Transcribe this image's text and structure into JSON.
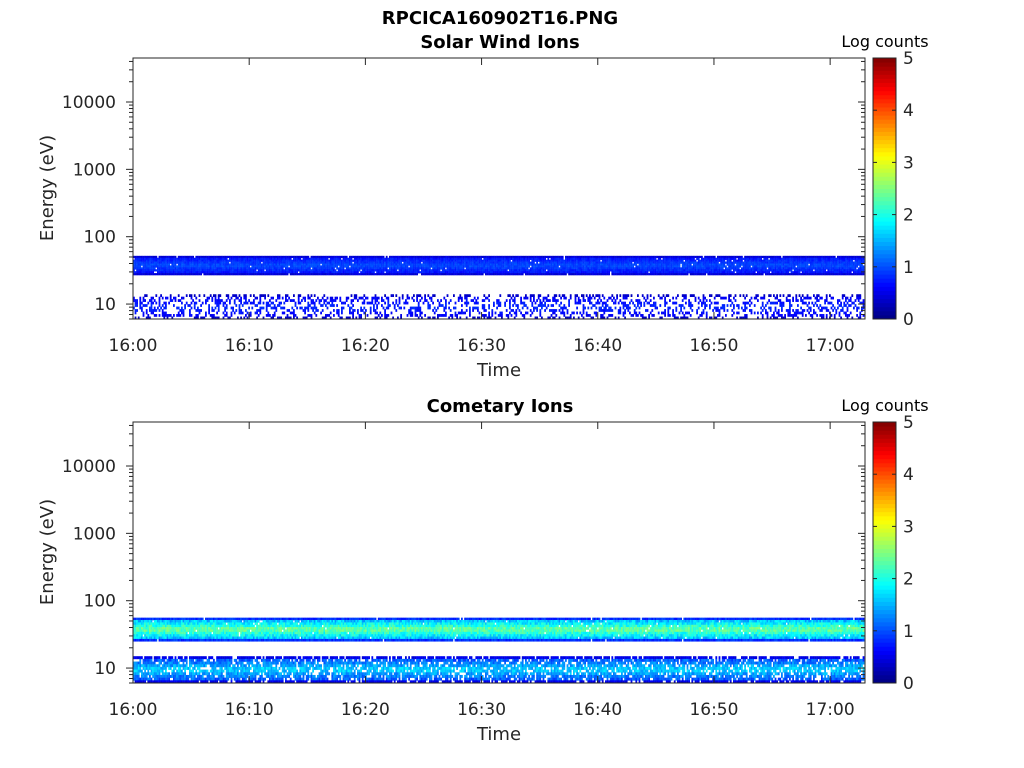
{
  "figure_title": "RPCICA160902T16.PNG",
  "colors": {
    "colormap": [
      "#00008f",
      "#0000ff",
      "#00ffff",
      "#ffff00",
      "#ff0000",
      "#800000"
    ],
    "axis": "#262626"
  },
  "chart_data": [
    {
      "type": "heatmap",
      "title": "Solar Wind Ions",
      "xlabel": "Time",
      "ylabel": "Energy (eV)",
      "x_ticks": [
        "16:00",
        "16:10",
        "16:20",
        "16:30",
        "16:40",
        "16:50",
        "17:00"
      ],
      "x_range_minutes": [
        0,
        63
      ],
      "y_scale": "log",
      "y_ticks": [
        "10",
        "100",
        "1000",
        "10000"
      ],
      "y_range": [
        6,
        45000
      ],
      "colorbar": {
        "label": "Log counts",
        "ticks": [
          "0",
          "1",
          "2",
          "3",
          "4",
          "5"
        ],
        "range": [
          0,
          5
        ]
      },
      "bands": [
        {
          "energy_min": 27,
          "energy_max": 52,
          "log_counts_min": 0.5,
          "log_counts_max": 1.1,
          "fill": 0.97
        },
        {
          "energy_min": 6,
          "energy_max": 14,
          "log_counts_min": 0.4,
          "log_counts_max": 0.9,
          "fill": 0.35
        }
      ],
      "grid": false
    },
    {
      "type": "heatmap",
      "title": "Cometary Ions",
      "xlabel": "Time",
      "ylabel": "Energy (eV)",
      "x_ticks": [
        "16:00",
        "16:10",
        "16:20",
        "16:30",
        "16:40",
        "16:50",
        "17:00"
      ],
      "x_range_minutes": [
        0,
        63
      ],
      "y_scale": "log",
      "y_ticks": [
        "10",
        "100",
        "1000",
        "10000"
      ],
      "y_range": [
        6,
        45000
      ],
      "colorbar": {
        "label": "Log counts",
        "ticks": [
          "0",
          "1",
          "2",
          "3",
          "4",
          "5"
        ],
        "range": [
          0,
          5
        ]
      },
      "bands": [
        {
          "energy_min": 25,
          "energy_max": 56,
          "log_counts_min": 1.0,
          "log_counts_max": 2.7,
          "fill": 0.98
        },
        {
          "energy_min": 6,
          "energy_max": 15,
          "log_counts_min": 0.6,
          "log_counts_max": 1.9,
          "fill": 0.8
        }
      ],
      "grid": false
    }
  ]
}
